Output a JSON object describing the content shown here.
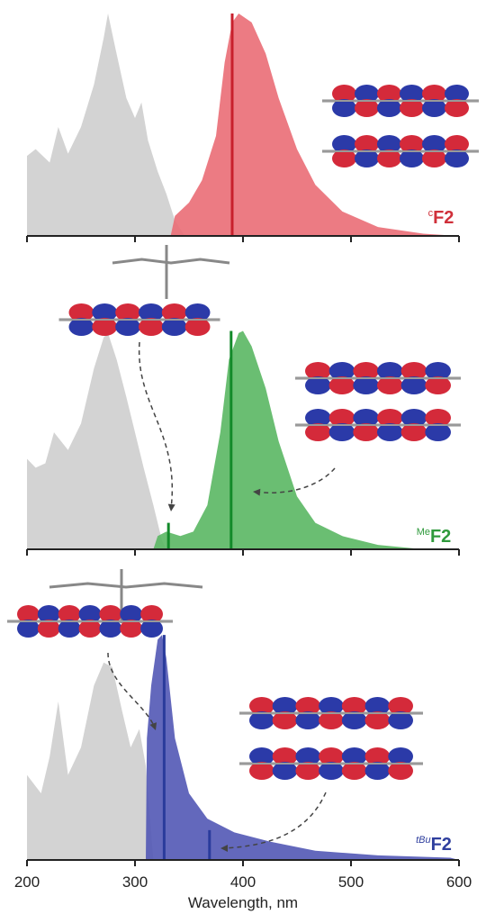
{
  "chart_data": [
    {
      "type": "area",
      "label_sup": "c",
      "label": "F2",
      "label_color": "#d0303a",
      "xlim": [
        200,
        600
      ],
      "ylim": [
        0,
        1
      ],
      "xticks": [
        200,
        300,
        400,
        500,
        600
      ],
      "tick_labels": false,
      "series": [
        {
          "color": "#d3d3d3",
          "x": [
            200,
            208,
            221,
            229,
            238,
            250,
            262,
            271,
            275,
            282,
            292,
            300,
            306,
            312,
            321,
            329,
            337,
            346
          ],
          "values": [
            0.36,
            0.39,
            0.33,
            0.49,
            0.37,
            0.49,
            0.68,
            0.89,
            1.0,
            0.84,
            0.62,
            0.53,
            0.6,
            0.43,
            0.29,
            0.19,
            0.07,
            0
          ]
        },
        {
          "color": "#ea6d75",
          "x": [
            333,
            337,
            350,
            362,
            375,
            383,
            390,
            396,
            408,
            421,
            433,
            450,
            467,
            492,
            525,
            567,
            600
          ],
          "values": [
            0,
            0.09,
            0.15,
            0.25,
            0.45,
            0.78,
            0.96,
            1.0,
            0.96,
            0.82,
            0.62,
            0.39,
            0.23,
            0.11,
            0.04,
            0.01,
            0
          ]
        }
      ],
      "sticks": {
        "color": "#c8202c",
        "x": [
          390
        ],
        "values": [
          1.0
        ]
      }
    },
    {
      "type": "area",
      "label_sup": "Me",
      "label": "F2",
      "label_color": "#2f9a3c",
      "xlim": [
        200,
        600
      ],
      "ylim": [
        0,
        1
      ],
      "xticks": [
        200,
        300,
        400,
        500,
        600
      ],
      "tick_labels": false,
      "series": [
        {
          "color": "#d3d3d3",
          "x": [
            200,
            208,
            217,
            225,
            238,
            250,
            262,
            271,
            275,
            283,
            292,
            300,
            308,
            317,
            325,
            329
          ],
          "values": [
            0.41,
            0.37,
            0.39,
            0.53,
            0.45,
            0.57,
            0.82,
            0.96,
            0.98,
            0.86,
            0.69,
            0.53,
            0.37,
            0.2,
            0.04,
            0
          ]
        },
        {
          "color": "#5ab763",
          "x": [
            317,
            321,
            329,
            342,
            354,
            367,
            379,
            387,
            396,
            400,
            408,
            421,
            433,
            450,
            467,
            492,
            525,
            567
          ],
          "values": [
            0,
            0.06,
            0.08,
            0.06,
            0.08,
            0.2,
            0.53,
            0.86,
            0.98,
            0.99,
            0.92,
            0.73,
            0.49,
            0.24,
            0.12,
            0.06,
            0.02,
            0
          ]
        }
      ],
      "sticks": {
        "color": "#138a2a",
        "x": [
          331,
          389
        ],
        "values": [
          0.12,
          0.99
        ]
      }
    },
    {
      "type": "area",
      "label_sup": "tBu",
      "label": "F2",
      "label_color": "#2f3f9e",
      "xlim": [
        200,
        600
      ],
      "ylim": [
        0,
        1
      ],
      "xticks": [
        200,
        300,
        400,
        500,
        600
      ],
      "tick_labels": true,
      "xlabel": "Wavelength, nm",
      "series": [
        {
          "color": "#d3d3d3",
          "x": [
            200,
            213,
            221,
            229,
            238,
            250,
            262,
            271,
            279,
            288,
            296,
            304,
            310,
            317
          ],
          "values": [
            0.37,
            0.29,
            0.45,
            0.69,
            0.37,
            0.49,
            0.76,
            0.86,
            0.84,
            0.65,
            0.49,
            0.57,
            0.41,
            0
          ]
        },
        {
          "color": "#5258b5",
          "x": [
            310,
            311,
            315,
            321,
            325,
            329,
            337,
            350,
            367,
            392,
            425,
            467,
            525,
            592,
            600
          ],
          "values": [
            0,
            0.53,
            0.76,
            0.96,
            0.98,
            0.88,
            0.53,
            0.29,
            0.18,
            0.12,
            0.08,
            0.04,
            0.02,
            0.01,
            0
          ]
        }
      ],
      "sticks": {
        "color": "#2a3b9c",
        "x": [
          327,
          369
        ],
        "values": [
          0.98,
          0.13
        ]
      }
    }
  ]
}
